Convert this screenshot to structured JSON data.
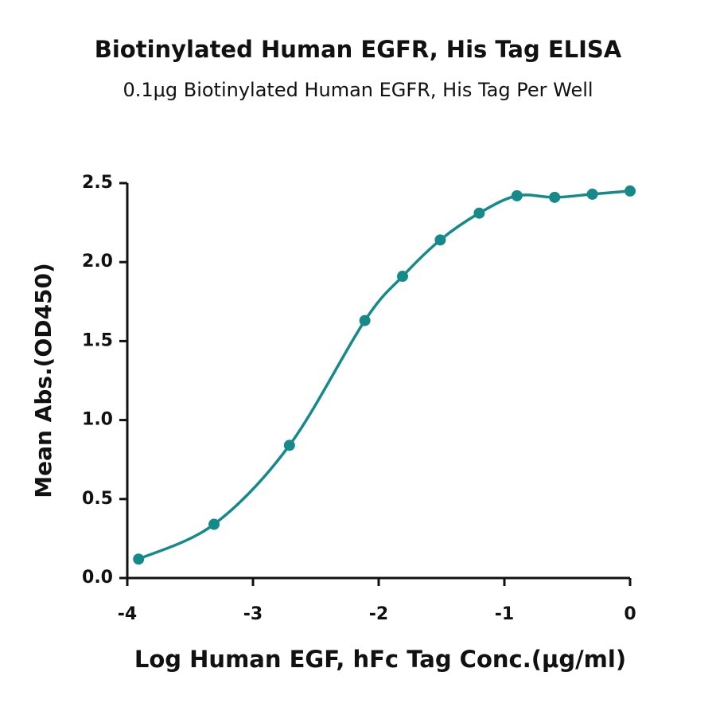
{
  "chart_data": {
    "type": "scatter",
    "title": "Biotinylated Human EGFR, His Tag ELISA",
    "subtitle": "0.1μg Biotinylated Human EGFR, His Tag Per Well",
    "x_label": "Log Human EGF, hFc Tag Conc.(μg/ml)",
    "y_label": "Mean Abs.(OD450)",
    "color": "#168a8a",
    "smooth_line": true,
    "x": [
      -3.91,
      -3.31,
      -2.71,
      -2.11,
      -1.81,
      -1.51,
      -1.2,
      -0.9,
      -0.6,
      -0.3,
      0
    ],
    "values": [
      0.12,
      0.34,
      0.84,
      1.63,
      1.91,
      2.14,
      2.31,
      2.42,
      2.41,
      2.43,
      2.45
    ],
    "xlim": [
      -4,
      0
    ],
    "xticks": [
      -4,
      -3,
      -2,
      -1,
      0
    ],
    "ylim": [
      0,
      2.5
    ],
    "yticks": [
      {
        "value": 0,
        "label": "0.0"
      },
      0.5,
      {
        "value": 1,
        "label": "1.0"
      },
      1.5,
      {
        "value": 2,
        "label": "2.0"
      },
      2.5
    ]
  }
}
